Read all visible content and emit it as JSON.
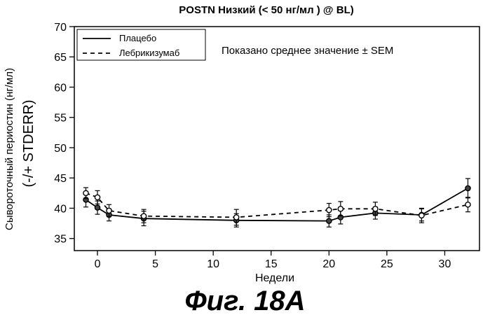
{
  "chart_data": {
    "type": "line",
    "title": "POSTN  Низкий (< 50 нг/мл  ) @ BL)",
    "xlabel": "Недели",
    "ylabel_line1": "Сывороточный периостин (нг/мл)",
    "ylabel_line2": "(-/+ STDERR)",
    "annotation": "Показано среднее значение ± SEM",
    "xlim": [
      -2,
      33
    ],
    "ylim": [
      33,
      70
    ],
    "xticks": [
      0,
      5,
      10,
      15,
      20,
      25,
      30
    ],
    "yticks": [
      35,
      40,
      45,
      50,
      55,
      60,
      65,
      70
    ],
    "legend_position": "top-left",
    "grid": false,
    "series": [
      {
        "name": "Плацебо",
        "style": "solid",
        "marker": "filled-circle",
        "color": "#000000",
        "x": [
          -1,
          0,
          1,
          4,
          12,
          20,
          21,
          24,
          28,
          32
        ],
        "y": [
          41.4,
          40.1,
          38.9,
          38.3,
          38.0,
          37.9,
          38.5,
          39.2,
          38.9,
          43.3
        ],
        "err": [
          1.2,
          1.1,
          1.0,
          1.2,
          1.1,
          1.0,
          1.1,
          1.0,
          1.0,
          1.6
        ]
      },
      {
        "name": "Лебрикизумаб",
        "style": "dashed",
        "marker": "open-circle",
        "color": "#000000",
        "x": [
          -1,
          0,
          1,
          4,
          12,
          20,
          21,
          24,
          28,
          32
        ],
        "y": [
          42.5,
          41.8,
          39.6,
          38.7,
          38.5,
          39.7,
          39.9,
          39.9,
          38.8,
          40.6
        ],
        "err": [
          0.9,
          1.1,
          1.0,
          1.1,
          1.3,
          1.1,
          1.2,
          1.1,
          1.2,
          1.2
        ]
      }
    ]
  },
  "figure_caption": "Фиг. 18A"
}
